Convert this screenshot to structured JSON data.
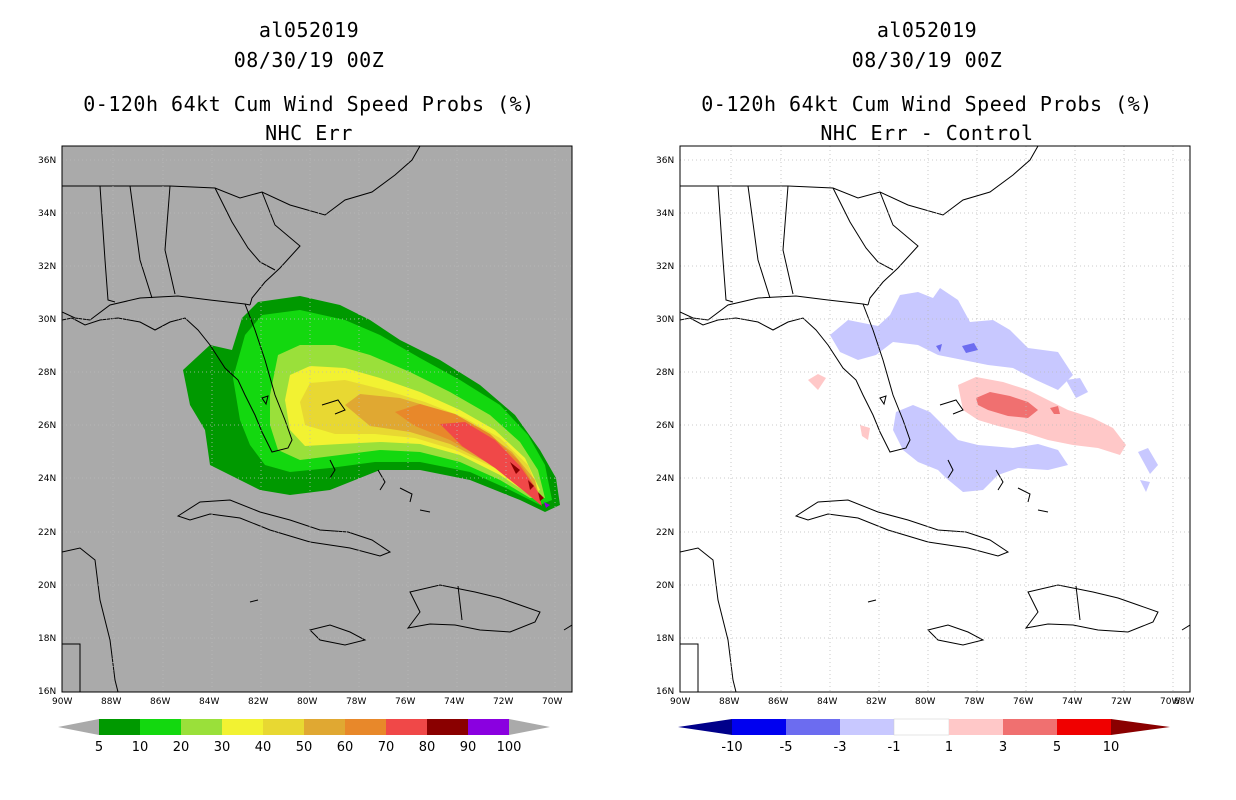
{
  "colors": {
    "land_bg_left": "#aaaaaa",
    "coast": "#000000",
    "grid": "#bbbbbb",
    "prob_5": "#009900",
    "prob_10": "#13d80f",
    "prob_20": "#9ae03a",
    "prob_30": "#f2f232",
    "prob_40": "#e8d832",
    "prob_50": "#e0a832",
    "prob_60": "#e8882a",
    "prob_70": "#f04848",
    "prob_80": "#8a0000",
    "prob_90": "#8a00e0",
    "diff_neg10": "#00008a",
    "diff_neg5": "#0000f0",
    "diff_neg3": "#6c6cf0",
    "diff_neg1": "#c8c8ff",
    "diff_zero": "#ffffff",
    "diff_pos1": "#ffc8c8",
    "diff_pos3": "#f07070",
    "diff_pos5": "#f00000",
    "diff_pos10": "#8a0000"
  },
  "axes": {
    "lat_labels": [
      "36N",
      "34N",
      "32N",
      "30N",
      "28N",
      "26N",
      "24N",
      "22N",
      "20N",
      "18N",
      "16N"
    ],
    "lon_labels": [
      "90W",
      "88W",
      "86W",
      "84W",
      "82W",
      "80W",
      "78W",
      "76W",
      "74W",
      "72W",
      "70W",
      "68W"
    ]
  },
  "left": {
    "storm_id": "al052019",
    "datetime": "08/30/19 00Z",
    "product": "0-120h 64kt Cum Wind Speed Probs (%)",
    "subtitle": "NHC Err",
    "colorbar_labels": [
      "5",
      "10",
      "20",
      "30",
      "40",
      "50",
      "60",
      "70",
      "80",
      "90",
      "100"
    ]
  },
  "right": {
    "storm_id": "al052019",
    "datetime": "08/30/19 00Z",
    "product": "0-120h 64kt Cum Wind Speed Probs (%)",
    "subtitle": "NHC Err - Control",
    "colorbar_labels": [
      "-10",
      "-5",
      "-3",
      "-1",
      "1",
      "3",
      "5",
      "10"
    ]
  }
}
